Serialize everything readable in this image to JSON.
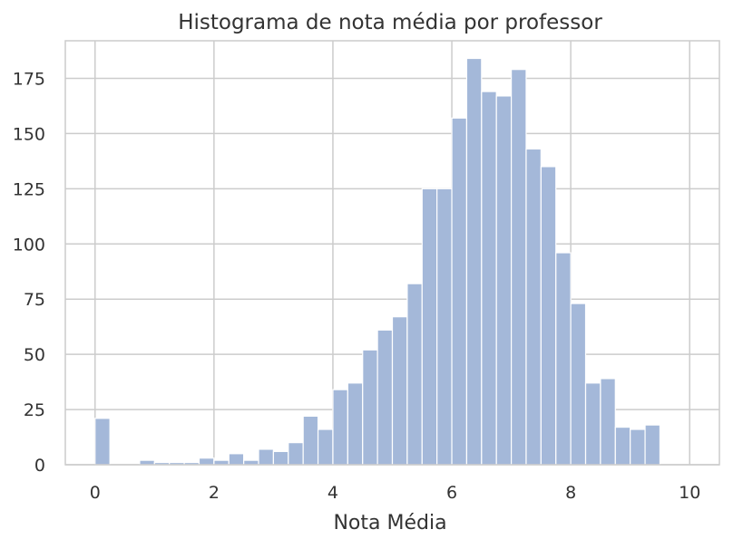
{
  "chart_data": {
    "type": "bar",
    "title": "Histograma de nota média por professor",
    "xlabel": "Nota Média",
    "ylabel": "",
    "xlim": [
      -0.5,
      10.5
    ],
    "ylim": [
      0,
      192
    ],
    "xticks": [
      0,
      2,
      4,
      6,
      8,
      10
    ],
    "yticks": [
      0,
      25,
      50,
      75,
      100,
      125,
      150,
      175
    ],
    "grid": true,
    "bar_color": "#a4b8d9",
    "bins": {
      "edges": [
        0,
        0.25,
        0.5,
        0.75,
        1,
        1.25,
        1.5,
        1.75,
        2,
        2.25,
        2.5,
        2.75,
        3,
        3.25,
        3.5,
        3.75,
        4,
        4.25,
        4.5,
        4.75,
        5,
        5.25,
        5.5,
        5.75,
        6,
        6.25,
        6.5,
        6.75,
        7,
        7.25,
        7.5,
        7.75,
        8,
        8.25,
        8.5,
        8.75,
        9,
        9.25,
        9.5,
        9.75,
        10
      ],
      "counts": [
        21,
        0,
        0,
        2,
        1,
        1,
        1,
        3,
        2,
        5,
        2,
        7,
        6,
        10,
        22,
        16,
        34,
        37,
        52,
        61,
        67,
        82,
        125,
        125,
        157,
        184,
        169,
        167,
        179,
        143,
        135,
        96,
        73,
        37,
        39,
        17,
        16,
        18,
        0,
        0
      ]
    }
  }
}
